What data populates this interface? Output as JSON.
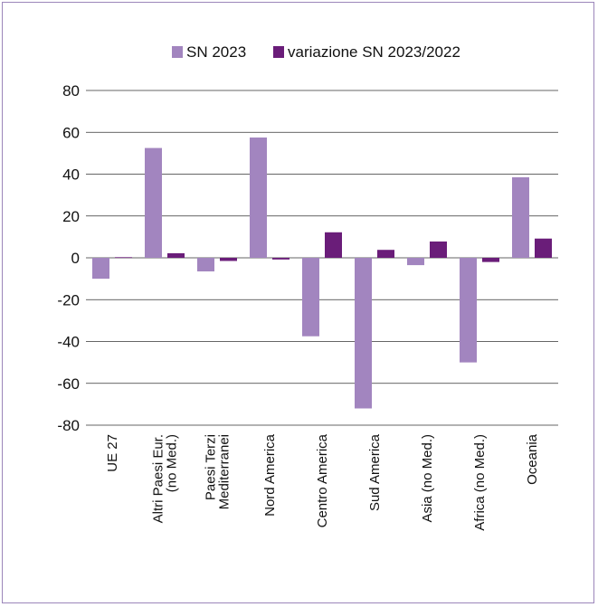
{
  "chart_data": {
    "type": "bar",
    "categories": [
      "UE 27",
      "Altri Paesi Eur.\n(no Med.)",
      "Paesi Terzi\nMediterranei",
      "Nord America",
      "Centro America",
      "Sud America",
      "Asia (no Med.)",
      "Africa (no Med.)",
      "Oceania"
    ],
    "series": [
      {
        "name": "SN 2023",
        "color": "#a285bf",
        "values": [
          -10,
          52.5,
          -6.5,
          57.5,
          -37.5,
          -72,
          -3.5,
          -50,
          38.5
        ]
      },
      {
        "name": "variazione  SN 2023/2022",
        "color": "#6a1d79",
        "values": [
          0.3,
          2.2,
          -1.5,
          -0.8,
          12.2,
          3.8,
          7.8,
          -2,
          9.2
        ]
      }
    ],
    "ylim": [
      -80,
      80
    ],
    "yticks": [
      80,
      60,
      40,
      20,
      0,
      -20,
      -40,
      -60,
      -80
    ],
    "legend_position": "top-center",
    "grid": "horizontal"
  }
}
